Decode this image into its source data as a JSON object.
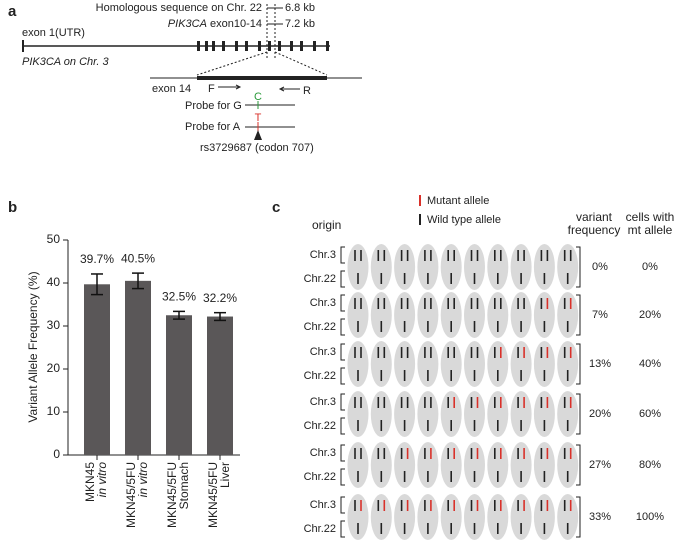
{
  "panel_a": {
    "label": "a",
    "homologous": "Homologous sequence on Chr. 22",
    "homologous_size": "6.8 kb",
    "gene_italic": "PIK3CA",
    "exon_range": "exon10-14",
    "exon_range_size": "7.2 kb",
    "exon1": "exon 1(UTR)",
    "gene_name": "PIK3CA",
    "gene_location": "on Chr. 3",
    "exon14": "exon 14",
    "forward": "F",
    "reverse": "R",
    "probe_g": "Probe for G",
    "probe_g_base": "C",
    "probe_a": "Probe for A",
    "probe_a_base": "T",
    "snp": "rs3729687 (codon 707)"
  },
  "chart_data": {
    "type": "bar",
    "label": "b",
    "y_label": "Variant Allele Frequency (%)",
    "categories": [
      "MKN45",
      "MKN45/5FU",
      "MKN45/5FU",
      "MKN45/5FU"
    ],
    "category_sublabels": [
      "in vitro",
      "in vitro",
      "Stomach",
      "Liver"
    ],
    "values": [
      39.7,
      40.5,
      32.5,
      32.2
    ],
    "value_labels": [
      "39.7%",
      "40.5%",
      "32.5%",
      "32.2%"
    ],
    "errors": [
      2.4,
      1.8,
      0.9,
      0.9
    ],
    "color": "#5a5758",
    "ylim": [
      0,
      50
    ],
    "yticks": [
      0,
      10,
      20,
      30,
      40,
      50
    ]
  },
  "panel_c": {
    "label": "c",
    "origin": "origin",
    "mutant_legend": "Mutant allele",
    "wildtype_legend": "Wild type allele",
    "variant_header": [
      "variant",
      "frequency"
    ],
    "cells_header": [
      "cells with",
      "mt allele"
    ],
    "chr3": "Chr.3",
    "chr22": "Chr.22",
    "rows": [
      {
        "variant_frequency": "0%",
        "cells_with_mt": "0%",
        "mutant_cells": 0
      },
      {
        "variant_frequency": "7%",
        "cells_with_mt": "20%",
        "mutant_cells": 2
      },
      {
        "variant_frequency": "13%",
        "cells_with_mt": "40%",
        "mutant_cells": 4
      },
      {
        "variant_frequency": "20%",
        "cells_with_mt": "60%",
        "mutant_cells": 6
      },
      {
        "variant_frequency": "27%",
        "cells_with_mt": "80%",
        "mutant_cells": 8
      },
      {
        "variant_frequency": "33%",
        "cells_with_mt": "100%",
        "mutant_cells": 10
      }
    ]
  }
}
